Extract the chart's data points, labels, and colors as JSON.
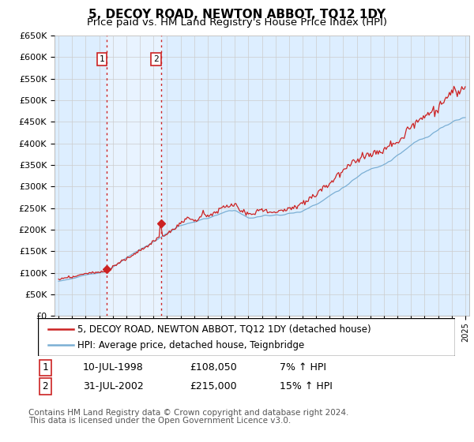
{
  "title": "5, DECOY ROAD, NEWTON ABBOT, TQ12 1DY",
  "subtitle": "Price paid vs. HM Land Registry's House Price Index (HPI)",
  "legend_line1": "5, DECOY ROAD, NEWTON ABBOT, TQ12 1DY (detached house)",
  "legend_line2": "HPI: Average price, detached house, Teignbridge",
  "sale1_date": "10-JUL-1998",
  "sale1_price": 108050,
  "sale1_label": "1",
  "sale1_pct": "7% ↑ HPI",
  "sale2_date": "31-JUL-2002",
  "sale2_price": 215000,
  "sale2_label": "2",
  "sale2_pct": "15% ↑ HPI",
  "footer1": "Contains HM Land Registry data © Crown copyright and database right 2024.",
  "footer2": "This data is licensed under the Open Government Licence v3.0.",
  "hpi_color": "#7bafd4",
  "price_color": "#cc2222",
  "vline_color": "#cc2222",
  "grid_color": "#cccccc",
  "bg_color": "#ddeeff",
  "shade_color": "#ccddf0",
  "ylim_min": 0,
  "ylim_max": 650000,
  "ytick_step": 50000,
  "x_start_year": 1995,
  "x_end_year": 2025,
  "title_fontsize": 11,
  "subtitle_fontsize": 9.5,
  "axis_fontsize": 8,
  "legend_fontsize": 9,
  "footer_fontsize": 7.5,
  "sale1_x": 1998.54,
  "sale2_x": 2002.54
}
